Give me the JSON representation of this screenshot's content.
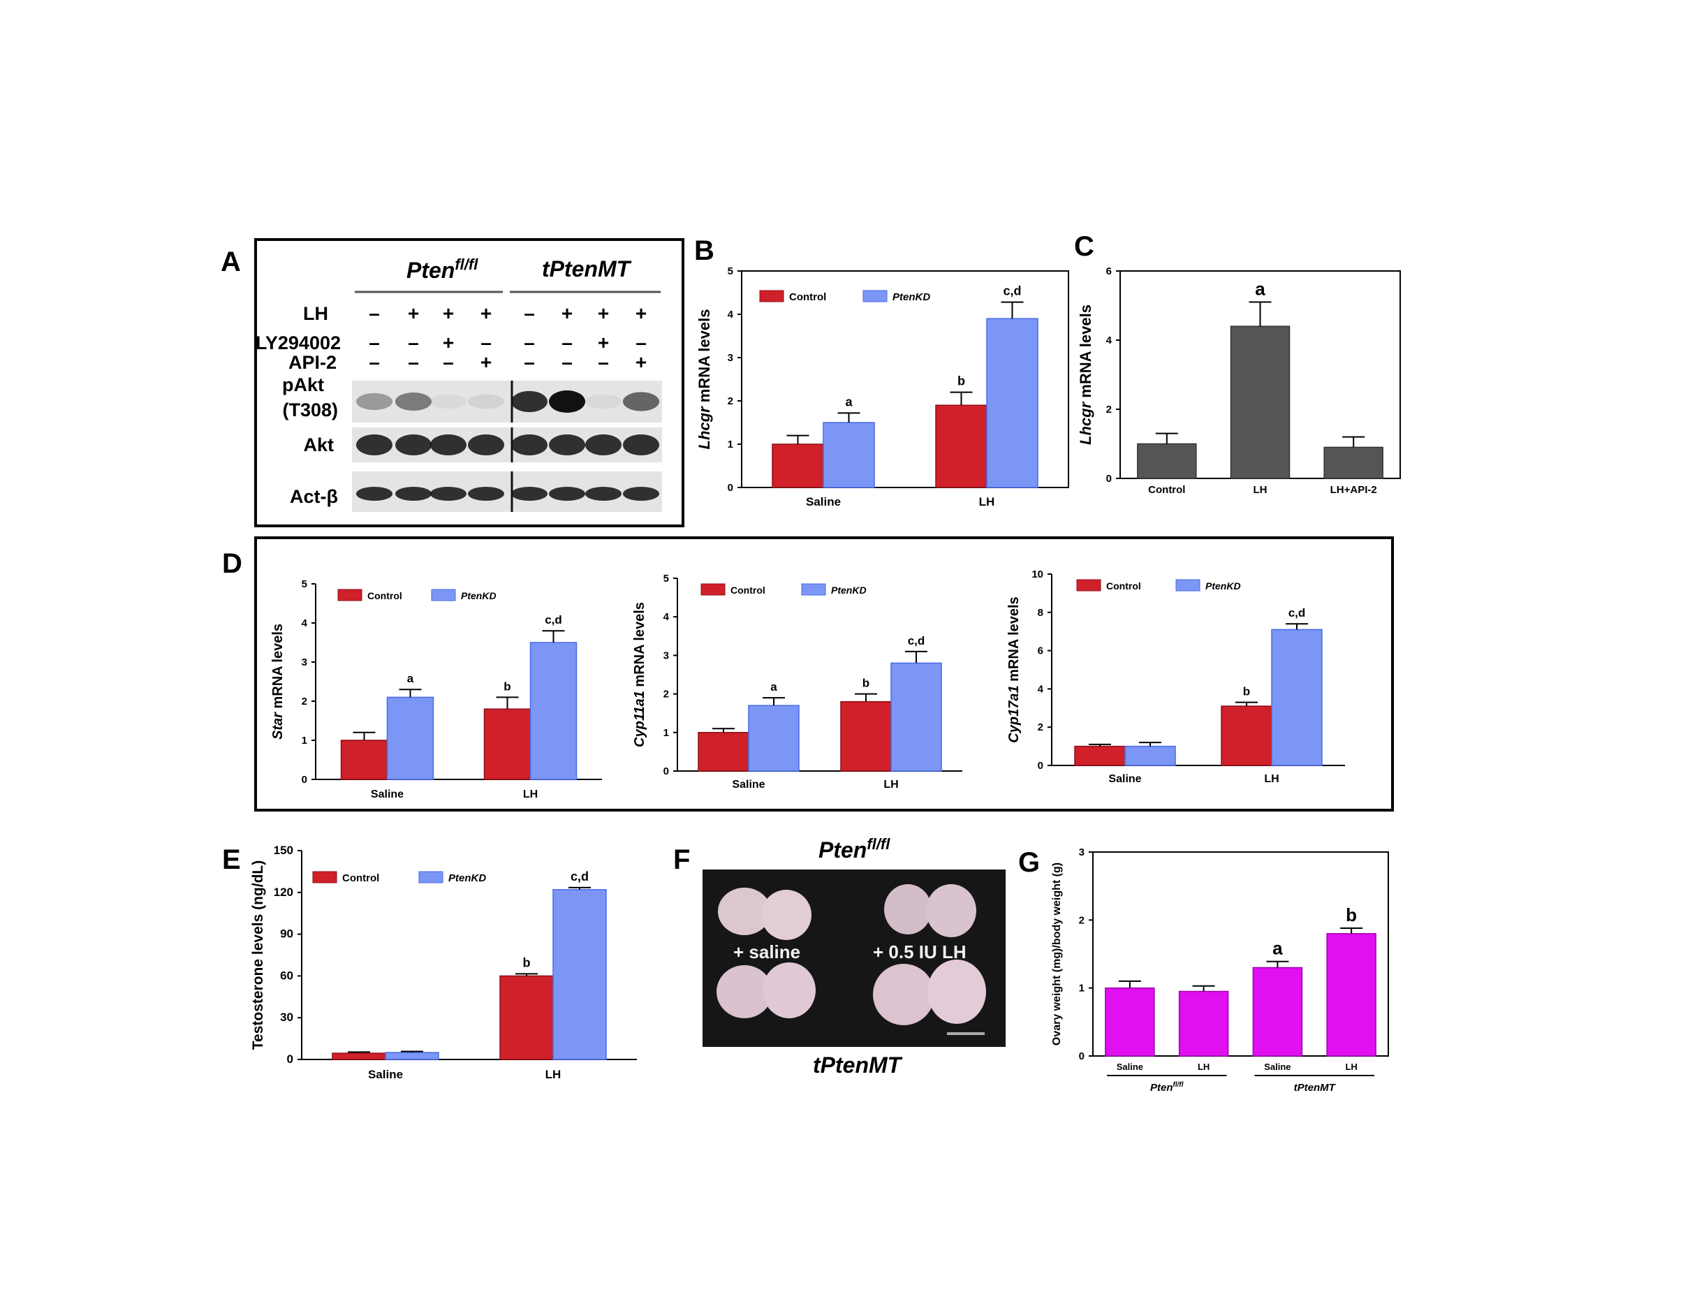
{
  "panel_letters": [
    "A",
    "B",
    "C",
    "D",
    "E",
    "F",
    "G"
  ],
  "colors": {
    "control": "#d0202a",
    "ptenkd": "#7b96f5",
    "ptenkd_edge": "#4a6ae8",
    "gray": "#555555",
    "magenta": "#e010f0"
  },
  "western": {
    "group1": "Pten",
    "group1_sup": "fl/fl",
    "group2": "tPtenMT",
    "rows": [
      {
        "label": "LH",
        "signs": [
          "–",
          "+",
          "+",
          "+",
          "–",
          "+",
          "+",
          "+"
        ]
      },
      {
        "label": "LY294002",
        "signs": [
          "–",
          "–",
          "+",
          "–",
          "–",
          "–",
          "+",
          "–"
        ]
      },
      {
        "label": "API-2",
        "signs": [
          "–",
          "–",
          "–",
          "+",
          "–",
          "–",
          "–",
          "+"
        ]
      }
    ],
    "blot_labels": [
      "pAkt",
      "(T308)",
      "Akt",
      "Act-β"
    ],
    "pakt_intensity": [
      0.35,
      0.5,
      0.05,
      0.08,
      0.85,
      1.0,
      0.05,
      0.6
    ]
  },
  "photo": {
    "top_label": "Pten",
    "top_label_sup": "fl/fl",
    "bottom_label": "tPtenMT",
    "left_caption": "+ saline",
    "right_caption": "+ 0.5 IU LH"
  },
  "chart_data": [
    {
      "id": "B",
      "type": "bar",
      "ylabel_italic": "Lhcgr",
      "ylabel_rest": " mRNA levels",
      "categories": [
        "Saline",
        "LH"
      ],
      "ylim": [
        0,
        5
      ],
      "yticks": [
        0,
        1,
        2,
        3,
        4,
        5
      ],
      "legend": [
        "Control",
        "PtenKD"
      ],
      "series": [
        {
          "name": "Control",
          "values": [
            1.0,
            1.9
          ],
          "errors": [
            0.2,
            0.3
          ],
          "labels": [
            "",
            "b"
          ]
        },
        {
          "name": "PtenKD",
          "values": [
            1.5,
            3.9
          ],
          "errors": [
            0.22,
            0.38
          ],
          "labels": [
            "a",
            "c,d"
          ]
        }
      ]
    },
    {
      "id": "C",
      "type": "bar",
      "ylabel_italic": "Lhcgr",
      "ylabel_rest": " mRNA levels",
      "categories": [
        "Control",
        "LH",
        "LH+API-2"
      ],
      "ylim": [
        0,
        6
      ],
      "yticks": [
        0,
        2,
        4,
        6
      ],
      "legend": [],
      "series": [
        {
          "name": "",
          "values": [
            1.0,
            4.4,
            0.9
          ],
          "errors": [
            0.3,
            0.7,
            0.3
          ],
          "labels": [
            "",
            "a",
            ""
          ]
        }
      ]
    },
    {
      "id": "D1",
      "type": "bar",
      "ylabel_italic": "Star",
      "ylabel_rest": " mRNA levels",
      "categories": [
        "Saline",
        "LH"
      ],
      "ylim": [
        0,
        5
      ],
      "yticks": [
        0,
        1,
        2,
        3,
        4,
        5
      ],
      "legend": [
        "Control",
        "PtenKD"
      ],
      "series": [
        {
          "name": "Control",
          "values": [
            1.0,
            1.8
          ],
          "errors": [
            0.2,
            0.3
          ],
          "labels": [
            "",
            "b"
          ]
        },
        {
          "name": "PtenKD",
          "values": [
            2.1,
            3.5
          ],
          "errors": [
            0.2,
            0.3
          ],
          "labels": [
            "a",
            "c,d"
          ]
        }
      ]
    },
    {
      "id": "D2",
      "type": "bar",
      "ylabel_italic": "Cyp11a1",
      "ylabel_rest": " mRNA levels",
      "categories": [
        "Saline",
        "LH"
      ],
      "ylim": [
        0,
        5
      ],
      "yticks": [
        0,
        1,
        2,
        3,
        4,
        5
      ],
      "legend": [
        "Control",
        "PtenKD"
      ],
      "series": [
        {
          "name": "Control",
          "values": [
            1.0,
            1.8
          ],
          "errors": [
            0.1,
            0.2
          ],
          "labels": [
            "",
            "b"
          ]
        },
        {
          "name": "PtenKD",
          "values": [
            1.7,
            2.8
          ],
          "errors": [
            0.2,
            0.3
          ],
          "labels": [
            "a",
            "c,d"
          ]
        }
      ]
    },
    {
      "id": "D3",
      "type": "bar",
      "ylabel_italic": "Cyp17a1",
      "ylabel_rest": " mRNA levels",
      "categories": [
        "Saline",
        "LH"
      ],
      "ylim": [
        0,
        10
      ],
      "yticks": [
        0,
        2,
        4,
        6,
        8,
        10
      ],
      "legend": [
        "Control",
        "PtenKD"
      ],
      "series": [
        {
          "name": "Control",
          "values": [
            1.0,
            3.1
          ],
          "errors": [
            0.1,
            0.2
          ],
          "labels": [
            "",
            "b"
          ]
        },
        {
          "name": "PtenKD",
          "values": [
            1.0,
            7.1
          ],
          "errors": [
            0.2,
            0.3
          ],
          "labels": [
            "",
            "c,d"
          ]
        }
      ]
    },
    {
      "id": "E",
      "type": "bar",
      "ylabel_italic": "",
      "ylabel_rest": "Testosterone levels (ng/dL)",
      "categories": [
        "Saline",
        "LH"
      ],
      "ylim": [
        0,
        150
      ],
      "yticks": [
        0,
        30,
        60,
        90,
        120,
        150
      ],
      "legend": [
        "Control",
        "PtenKD"
      ],
      "series": [
        {
          "name": "Control",
          "values": [
            4.5,
            60
          ],
          "errors": [
            0.8,
            1.5
          ],
          "labels": [
            "",
            "b"
          ]
        },
        {
          "name": "PtenKD",
          "values": [
            5,
            122
          ],
          "errors": [
            0.8,
            1.5
          ],
          "labels": [
            "",
            "c,d"
          ]
        }
      ]
    },
    {
      "id": "G",
      "type": "bar",
      "ylabel_italic": "",
      "ylabel_rest": "Ovary weight (mg)/body weight (g)",
      "categories": [
        "Saline",
        "LH",
        "Saline",
        "LH"
      ],
      "groups": [
        {
          "label": "Pten",
          "sup": "fl/fl"
        },
        {
          "label": "tPtenMT",
          "sup": ""
        }
      ],
      "ylim": [
        0,
        3
      ],
      "yticks": [
        0,
        1,
        2,
        3
      ],
      "legend": [],
      "series": [
        {
          "name": "",
          "values": [
            1.0,
            0.95,
            1.3,
            1.8
          ],
          "errors": [
            0.1,
            0.08,
            0.09,
            0.08
          ],
          "labels": [
            "",
            "",
            "a",
            "b"
          ]
        }
      ]
    }
  ]
}
